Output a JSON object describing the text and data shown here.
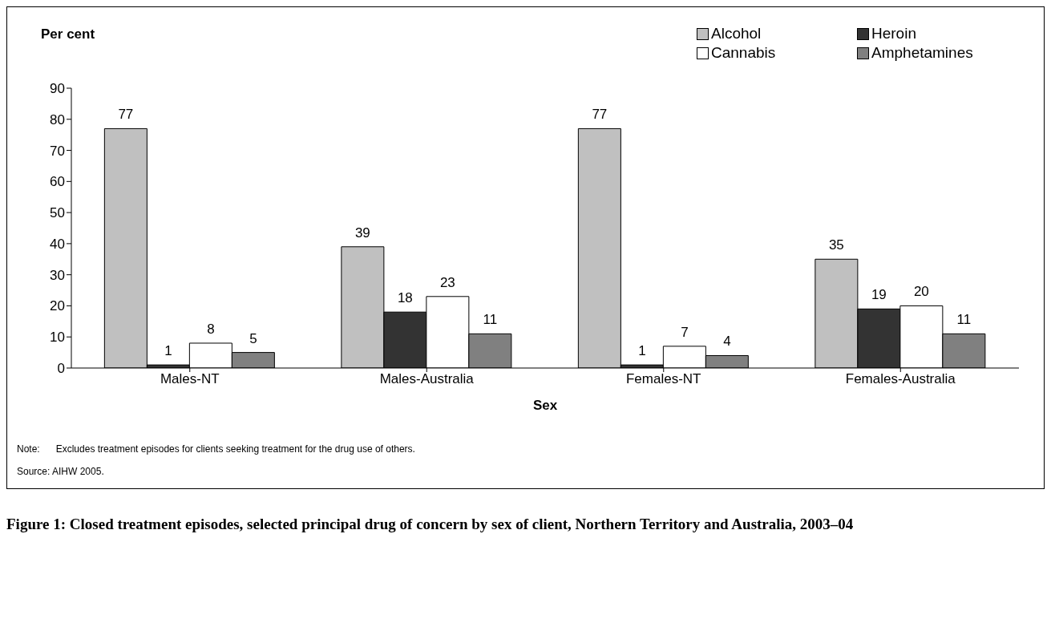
{
  "chart_data": {
    "type": "bar",
    "title": "Figure 1: Closed treatment episodes, selected principal drug of concern by sex of client, Northern Territory and Australia, 2003–04",
    "xlabel": "Sex",
    "ylabel": "Per cent",
    "categories": [
      "Males-NT",
      "Males-Australia",
      "Females-NT",
      "Females-Australia"
    ],
    "series": [
      {
        "name": "Alcohol",
        "color": "#c0c0c0",
        "values": [
          77,
          39,
          77,
          35
        ]
      },
      {
        "name": "Heroin",
        "color": "#333333",
        "values": [
          1,
          18,
          1,
          19
        ]
      },
      {
        "name": "Cannabis",
        "color": "#ffffff",
        "values": [
          8,
          23,
          7,
          20
        ]
      },
      {
        "name": "Amphetamines",
        "color": "#808080",
        "values": [
          5,
          11,
          4,
          11
        ]
      }
    ],
    "ylim": [
      0,
      90
    ],
    "yticks": [
      0,
      10,
      20,
      30,
      40,
      50,
      60,
      70,
      80,
      90
    ],
    "grid": false,
    "legend": "top right",
    "data_labels": true,
    "annotations": [
      "Note:      Excludes treatment episodes for clients seeking treatment for the drug use of others.",
      "Source: AIHW 2005."
    ]
  }
}
